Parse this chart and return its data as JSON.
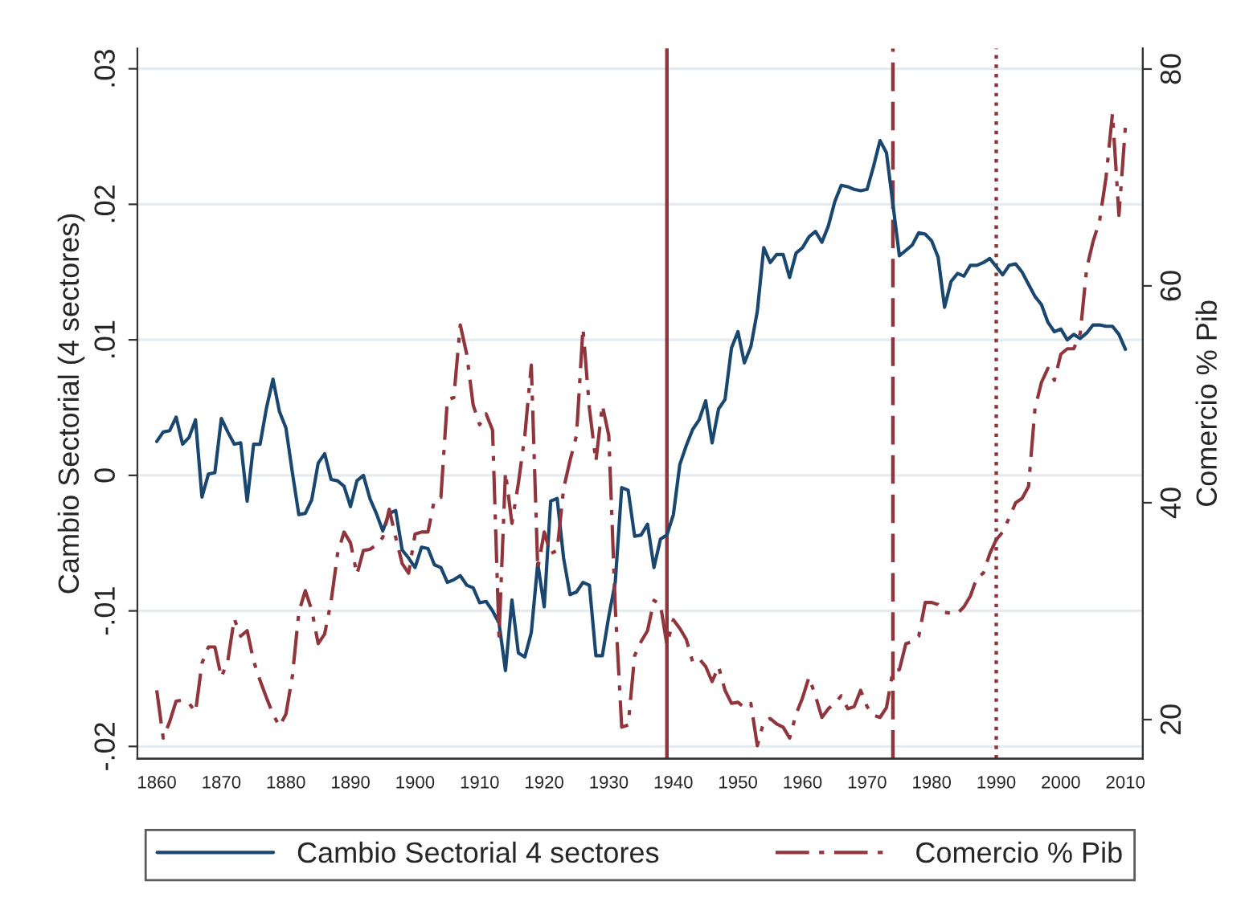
{
  "chart_data": {
    "type": "line",
    "x": [
      1860,
      1861,
      1862,
      1863,
      1864,
      1865,
      1866,
      1867,
      1868,
      1869,
      1870,
      1871,
      1872,
      1873,
      1874,
      1875,
      1876,
      1877,
      1878,
      1879,
      1880,
      1881,
      1882,
      1883,
      1884,
      1885,
      1886,
      1887,
      1888,
      1889,
      1890,
      1891,
      1892,
      1893,
      1894,
      1895,
      1896,
      1897,
      1898,
      1899,
      1900,
      1901,
      1902,
      1903,
      1904,
      1905,
      1906,
      1907,
      1908,
      1909,
      1910,
      1911,
      1912,
      1913,
      1914,
      1915,
      1916,
      1917,
      1918,
      1919,
      1920,
      1921,
      1922,
      1923,
      1924,
      1925,
      1926,
      1927,
      1928,
      1929,
      1930,
      1931,
      1932,
      1933,
      1934,
      1935,
      1936,
      1937,
      1938,
      1939,
      1940,
      1941,
      1942,
      1943,
      1944,
      1945,
      1946,
      1947,
      1948,
      1949,
      1950,
      1951,
      1952,
      1953,
      1954,
      1955,
      1956,
      1957,
      1958,
      1959,
      1960,
      1961,
      1962,
      1963,
      1964,
      1965,
      1966,
      1967,
      1968,
      1969,
      1970,
      1971,
      1972,
      1973,
      1974,
      1975,
      1976,
      1977,
      1978,
      1979,
      1980,
      1981,
      1982,
      1983,
      1984,
      1985,
      1986,
      1987,
      1988,
      1989,
      1990,
      1991,
      1992,
      1993,
      1994,
      1995,
      1996,
      1997,
      1998,
      1999,
      2000,
      2001,
      2002,
      2003,
      2004,
      2005,
      2006,
      2007,
      2008,
      2009,
      2010
    ],
    "ylabel": "Cambio Sectorial (4 sectores)",
    "y2label": "Comercio % Pib",
    "series": [
      {
        "name": "Cambio Sectorial 4 sectores",
        "color": "#1a476f",
        "line_style": "solid",
        "values": [
          0.0025,
          0.0032,
          0.0033,
          0.0043,
          0.0023,
          0.0028,
          0.0041,
          -0.0016,
          0.0001,
          0.0002,
          0.0042,
          0.0032,
          0.0023,
          0.0024,
          -0.0019,
          0.0023,
          0.0023,
          0.005,
          0.0071,
          0.0047,
          0.0035,
          0.0002,
          -0.0029,
          -0.0028,
          -0.0018,
          0.0009,
          0.0016,
          -0.0003,
          -0.0004,
          -0.0008,
          -0.0023,
          -0.0004,
          0.0,
          -0.0017,
          -0.0028,
          -0.0041,
          -0.0028,
          -0.0026,
          -0.0055,
          -0.0061,
          -0.0068,
          -0.0053,
          -0.0054,
          -0.0066,
          -0.0068,
          -0.0079,
          -0.0077,
          -0.0074,
          -0.0081,
          -0.0083,
          -0.0094,
          -0.0093,
          -0.01,
          -0.0109,
          -0.0144,
          -0.0092,
          -0.0131,
          -0.0134,
          -0.0116,
          -0.0065,
          -0.0097,
          -0.0019,
          -0.0017,
          -0.0061,
          -0.0088,
          -0.0086,
          -0.0079,
          -0.0081,
          -0.0133,
          -0.0133,
          -0.0104,
          -0.0079,
          -0.0009,
          -0.0011,
          -0.0045,
          -0.0044,
          -0.0036,
          -0.0068,
          -0.0047,
          -0.0044,
          -0.0029,
          0.0008,
          0.0022,
          0.0034,
          0.0041,
          0.0055,
          0.0024,
          0.0049,
          0.0056,
          0.0094,
          0.0106,
          0.0083,
          0.0095,
          0.0121,
          0.0168,
          0.0157,
          0.0163,
          0.0163,
          0.0146,
          0.0164,
          0.0168,
          0.0176,
          0.018,
          0.0172,
          0.0184,
          0.0202,
          0.0214,
          0.0213,
          0.0211,
          0.021,
          0.0211,
          0.0228,
          0.0247,
          0.0238,
          0.02,
          0.0162,
          0.0166,
          0.017,
          0.0179,
          0.0178,
          0.0173,
          0.0161,
          0.0124,
          0.0143,
          0.0149,
          0.0147,
          0.0155,
          0.0155,
          0.0157,
          0.016,
          0.0154,
          0.0148,
          0.0155,
          0.0156,
          0.015,
          0.0141,
          0.0132,
          0.0126,
          0.0113,
          0.0106,
          0.0108,
          0.01,
          0.0104,
          0.0101,
          0.0105,
          0.0111,
          0.0111,
          0.011,
          0.011,
          0.0104,
          0.0093
        ]
      },
      {
        "name": "Comercio % Pib",
        "color": "#90353b",
        "line_style": "dashdot",
        "axis": "y2",
        "values": [
          22.7,
          18.3,
          19.8,
          21.7,
          21.8,
          21.5,
          20.7,
          25.2,
          26.7,
          26.7,
          23.9,
          25.4,
          29.3,
          27.7,
          28.2,
          25.4,
          23.6,
          22.0,
          20.5,
          19.4,
          20.5,
          24.0,
          29.9,
          31.9,
          30.1,
          27.0,
          27.9,
          30.9,
          35.3,
          37.3,
          36.3,
          33.4,
          35.6,
          35.7,
          36.1,
          36.8,
          39.4,
          36.8,
          34.4,
          33.5,
          37.1,
          37.3,
          37.3,
          40.3,
          40.5,
          49.5,
          49.7,
          56.4,
          53.7,
          49.0,
          47.2,
          48.2,
          46.7,
          27.7,
          42.8,
          38.1,
          41.8,
          46.2,
          52.7,
          33.9,
          37.3,
          35.3,
          35.6,
          41.3,
          43.9,
          46.2,
          56.1,
          48.7,
          43.8,
          49.0,
          46.2,
          30.4,
          19.3,
          19.5,
          25.9,
          27.2,
          28.2,
          31.0,
          30.6,
          26.9,
          29.2,
          28.4,
          27.4,
          25.3,
          25.6,
          24.9,
          23.5,
          24.9,
          22.7,
          21.5,
          21.6,
          21.1,
          21.5,
          17.6,
          19.8,
          20.1,
          19.6,
          19.3,
          18.3,
          20.5,
          22.0,
          23.9,
          22.2,
          20.2,
          21.0,
          21.5,
          22.2,
          21.0,
          21.2,
          22.7,
          21.2,
          20.4,
          20.2,
          21.1,
          24.5,
          24.6,
          27.0,
          27.2,
          27.7,
          30.8,
          30.8,
          30.6,
          29.9,
          29.8,
          29.8,
          30.4,
          31.4,
          33.1,
          33.5,
          35.3,
          36.6,
          37.3,
          38.6,
          40.0,
          40.4,
          41.5,
          48.7,
          51.1,
          52.4,
          51.3,
          53.7,
          54.2,
          54.2,
          55.6,
          61.6,
          64.1,
          66.0,
          70.0,
          75.9,
          66.5,
          74.7
        ]
      }
    ],
    "xlim": [
      1857,
      2012.7
    ],
    "xticks": [
      1860,
      1870,
      1880,
      1890,
      1900,
      1910,
      1920,
      1930,
      1940,
      1950,
      1960,
      1970,
      1980,
      1990,
      2000,
      2010
    ],
    "ylim": [
      -0.0209,
      0.0315
    ],
    "yticks": [
      {
        "value": -0.02,
        "label": "-.02"
      },
      {
        "value": -0.01,
        "label": "-.01"
      },
      {
        "value": 0,
        "label": "0"
      },
      {
        "value": 0.01,
        "label": ".01"
      },
      {
        "value": 0.02,
        "label": ".02"
      },
      {
        "value": 0.03,
        "label": ".03"
      }
    ],
    "y2lim": [
      16.4,
      81.9
    ],
    "y2ticks": [
      20,
      40,
      60,
      80
    ],
    "ref_lines": [
      {
        "axis": "x",
        "value": 1939,
        "color": "#90353b",
        "line_style": "solid"
      },
      {
        "axis": "x",
        "value": 1974,
        "color": "#90353b",
        "line_style": "dashed"
      },
      {
        "axis": "x",
        "value": 1990,
        "color": "#90353b",
        "line_style": "dotted"
      }
    ],
    "grid": "y",
    "legend": "bottom"
  }
}
